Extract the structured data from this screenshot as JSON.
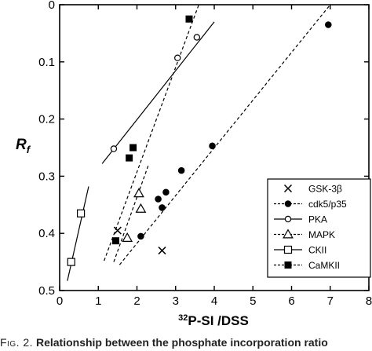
{
  "chart_data": {
    "type": "scatter",
    "xlabel": "DSS",
    "xlabel_prefix_sup": "32",
    "xlabel_prefix": "P-SI /",
    "ylabel": "R",
    "ylabel_sub": "f",
    "xlim": [
      0,
      8
    ],
    "ylim": [
      0,
      0.5
    ],
    "y_inverted": true,
    "x_ticks": [
      "0",
      "1",
      "2",
      "3",
      "4",
      "5",
      "6",
      "7",
      "8"
    ],
    "y_ticks": [
      "0",
      "0.1",
      "0.2",
      "0.3",
      "0.4",
      "0.5"
    ],
    "grid": false,
    "legend_placement": "bottom-right",
    "series": [
      {
        "name": "GSK-3β",
        "marker": "x",
        "line": "none",
        "points": [
          [
            1.5,
            0.395
          ],
          [
            2.65,
            0.43
          ]
        ]
      },
      {
        "name": "cdk5/p35",
        "marker": "filled-circle",
        "line": "dashed",
        "points": [
          [
            2.1,
            0.405
          ],
          [
            2.55,
            0.34
          ],
          [
            2.65,
            0.355
          ],
          [
            2.75,
            0.328
          ],
          [
            3.15,
            0.29
          ],
          [
            3.95,
            0.247
          ],
          [
            6.95,
            0.035
          ]
        ],
        "fit": [
          [
            1.55,
            0.455
          ],
          [
            7.0,
            0.0
          ]
        ]
      },
      {
        "name": "PKA",
        "marker": "open-circle",
        "line": "solid",
        "points": [
          [
            1.4,
            0.252
          ],
          [
            3.05,
            0.093
          ],
          [
            3.55,
            0.057
          ]
        ],
        "fit": [
          [
            1.1,
            0.278
          ],
          [
            4.0,
            0.03
          ]
        ]
      },
      {
        "name": "MAPK",
        "marker": "open-triangle",
        "line": "dashed",
        "points": [
          [
            1.75,
            0.408
          ],
          [
            2.05,
            0.33
          ],
          [
            2.1,
            0.357
          ]
        ],
        "fit": [
          [
            1.4,
            0.45
          ],
          [
            2.3,
            0.28
          ]
        ]
      },
      {
        "name": "CKII",
        "marker": "open-square",
        "line": "solid",
        "points": [
          [
            0.3,
            0.45
          ],
          [
            0.55,
            0.365
          ]
        ],
        "fit": [
          [
            0.2,
            0.483
          ],
          [
            0.75,
            0.318
          ]
        ]
      },
      {
        "name": "CaMKII",
        "marker": "filled-square",
        "line": "dashed",
        "points": [
          [
            1.45,
            0.413
          ],
          [
            1.8,
            0.268
          ],
          [
            1.9,
            0.25
          ],
          [
            3.35,
            0.025
          ]
        ],
        "fit": [
          [
            1.15,
            0.448
          ],
          [
            3.6,
            0.0
          ]
        ]
      }
    ]
  },
  "caption": {
    "fig_label": "Fig. 2.",
    "text": "Relationship between the phosphate incorporation ratio"
  }
}
